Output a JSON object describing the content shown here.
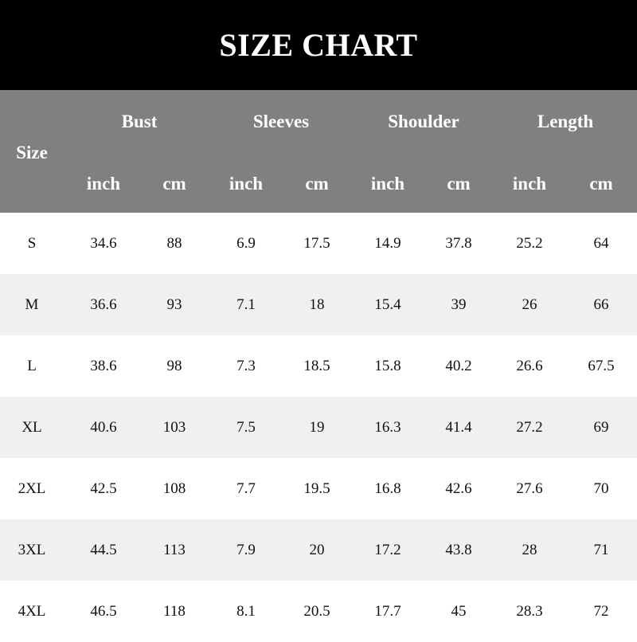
{
  "title": "SIZE CHART",
  "header": {
    "size_label": "Size",
    "groups": [
      "Bust",
      "Sleeves",
      "Shoulder",
      "Length"
    ],
    "units": [
      "inch",
      "cm",
      "inch",
      "cm",
      "inch",
      "cm",
      "inch",
      "cm"
    ]
  },
  "colors": {
    "title_bg": "#000000",
    "header_bg": "#808080",
    "alt_row_bg": "#f0f0f0"
  },
  "rows": [
    [
      "S",
      "34.6",
      "88",
      "6.9",
      "17.5",
      "14.9",
      "37.8",
      "25.2",
      "64"
    ],
    [
      "M",
      "36.6",
      "93",
      "7.1",
      "18",
      "15.4",
      "39",
      "26",
      "66"
    ],
    [
      "L",
      "38.6",
      "98",
      "7.3",
      "18.5",
      "15.8",
      "40.2",
      "26.6",
      "67.5"
    ],
    [
      "XL",
      "40.6",
      "103",
      "7.5",
      "19",
      "16.3",
      "41.4",
      "27.2",
      "69"
    ],
    [
      "2XL",
      "42.5",
      "108",
      "7.7",
      "19.5",
      "16.8",
      "42.6",
      "27.6",
      "70"
    ],
    [
      "3XL",
      "44.5",
      "113",
      "7.9",
      "20",
      "17.2",
      "43.8",
      "28",
      "71"
    ],
    [
      "4XL",
      "46.5",
      "118",
      "8.1",
      "20.5",
      "17.7",
      "45",
      "28.3",
      "72"
    ]
  ]
}
